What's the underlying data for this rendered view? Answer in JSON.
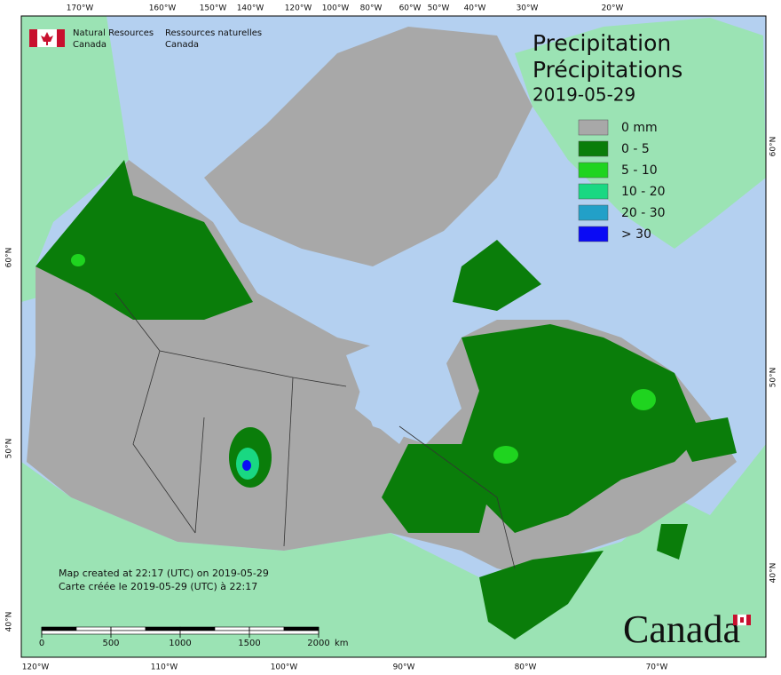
{
  "agency": {
    "en_line1": "Natural Resources",
    "en_line2": "Canada",
    "fr_line1": "Ressources naturelles",
    "fr_line2": "Canada"
  },
  "title": {
    "en": "Precipitation",
    "fr": "Précipitations",
    "date": "2019-05-29"
  },
  "legend": [
    {
      "label": "0 mm",
      "color": "#a8a8a8"
    },
    {
      "label": "0 - 5",
      "color": "#0a7d0a"
    },
    {
      "label": "5 - 10",
      "color": "#1fd41f"
    },
    {
      "label": "10 - 20",
      "color": "#19d882"
    },
    {
      "label": "20 - 30",
      "color": "#22a0c8"
    },
    {
      "label": "> 30",
      "color": "#0a0af5"
    }
  ],
  "graticule": {
    "top": [
      "170°W",
      "160°W",
      "150°W",
      "140°W",
      "120°W",
      "100°W",
      "80°W",
      "60°W",
      "50°W",
      "40°W",
      "30°W",
      "20°W"
    ],
    "bottom": [
      "120°W",
      "110°W",
      "100°W",
      "90°W",
      "80°W",
      "70°W"
    ],
    "left": [
      "60°N",
      "50°N",
      "40°N"
    ],
    "right": [
      "60°N",
      "50°N",
      "40°N"
    ]
  },
  "credits": [
    "Map created at 22:17 (UTC) on 2019-05-29",
    "Carte créée le 2019-05-29 (UTC) à 22:17"
  ],
  "scale_bar": {
    "ticks": [
      0,
      500,
      1000,
      1500,
      2000
    ],
    "unit": "km"
  },
  "wordmark": "Canada"
}
